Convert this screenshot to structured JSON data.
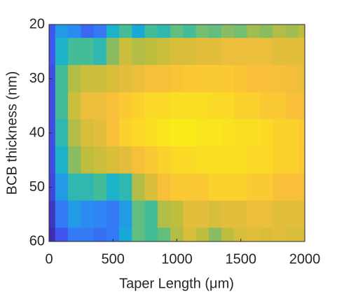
{
  "chart_data": {
    "type": "heatmap",
    "xlabel": "Taper Length (μm)",
    "ylabel": "BCB thickness (nm)",
    "x": [
      0,
      100,
      200,
      300,
      400,
      500,
      600,
      700,
      800,
      900,
      1000,
      1100,
      1200,
      1300,
      1400,
      1500,
      1600,
      1700,
      1800,
      1900,
      2000
    ],
    "y": [
      20,
      25,
      30,
      35,
      40,
      45,
      50,
      55,
      60
    ],
    "z": [
      [
        0.15,
        0.15,
        0.12,
        0.12,
        0.12,
        0.12,
        0.1,
        0.05,
        0.02
      ],
      [
        0.35,
        0.45,
        0.55,
        0.55,
        0.5,
        0.45,
        0.35,
        0.25,
        0.15
      ],
      [
        0.3,
        0.55,
        0.7,
        0.75,
        0.7,
        0.65,
        0.5,
        0.35,
        0.25
      ],
      [
        0.2,
        0.55,
        0.75,
        0.82,
        0.78,
        0.72,
        0.5,
        0.3,
        0.25
      ],
      [
        0.25,
        0.5,
        0.75,
        0.82,
        0.8,
        0.75,
        0.55,
        0.28,
        0.22
      ],
      [
        0.45,
        0.65,
        0.78,
        0.85,
        0.85,
        0.78,
        0.45,
        0.25,
        0.25
      ],
      [
        0.55,
        0.75,
        0.8,
        0.88,
        0.9,
        0.8,
        0.5,
        0.35,
        0.4
      ],
      [
        0.4,
        0.7,
        0.82,
        0.9,
        0.92,
        0.85,
        0.7,
        0.6,
        0.6
      ],
      [
        0.55,
        0.72,
        0.85,
        0.92,
        0.93,
        0.88,
        0.78,
        0.55,
        0.55
      ],
      [
        0.5,
        0.75,
        0.85,
        0.92,
        0.95,
        0.9,
        0.85,
        0.7,
        0.6
      ],
      [
        0.6,
        0.78,
        0.87,
        0.93,
        0.96,
        0.92,
        0.88,
        0.72,
        0.7
      ],
      [
        0.55,
        0.78,
        0.88,
        0.93,
        0.96,
        0.92,
        0.88,
        0.8,
        0.78
      ],
      [
        0.62,
        0.8,
        0.88,
        0.93,
        0.95,
        0.93,
        0.88,
        0.8,
        0.72
      ],
      [
        0.6,
        0.8,
        0.88,
        0.92,
        0.95,
        0.93,
        0.9,
        0.78,
        0.65
      ],
      [
        0.65,
        0.82,
        0.88,
        0.92,
        0.94,
        0.93,
        0.9,
        0.8,
        0.72
      ],
      [
        0.62,
        0.82,
        0.87,
        0.9,
        0.93,
        0.93,
        0.9,
        0.8,
        0.78
      ],
      [
        0.68,
        0.82,
        0.86,
        0.9,
        0.93,
        0.92,
        0.88,
        0.82,
        0.8
      ],
      [
        0.65,
        0.82,
        0.86,
        0.88,
        0.92,
        0.92,
        0.88,
        0.82,
        0.78
      ],
      [
        0.7,
        0.8,
        0.85,
        0.88,
        0.9,
        0.9,
        0.86,
        0.8,
        0.8
      ],
      [
        0.68,
        0.8,
        0.84,
        0.86,
        0.9,
        0.9,
        0.86,
        0.8,
        0.78
      ],
      [
        0.72,
        0.8,
        0.82,
        0.85,
        0.88,
        0.88,
        0.85,
        0.8,
        0.78
      ]
    ],
    "colormap": [
      "#3e26a8",
      "#4253ef",
      "#2e87f6",
      "#13b1d2",
      "#4cbe8e",
      "#bcbd3e",
      "#fbbf3a",
      "#f9fb0e"
    ],
    "xlim": [
      0,
      2000
    ],
    "xticks": [
      0,
      500,
      1000,
      1500,
      2000
    ],
    "ylim": [
      20,
      60
    ],
    "yticks": [
      20,
      30,
      40,
      50,
      60
    ],
    "y_reversed": true
  }
}
